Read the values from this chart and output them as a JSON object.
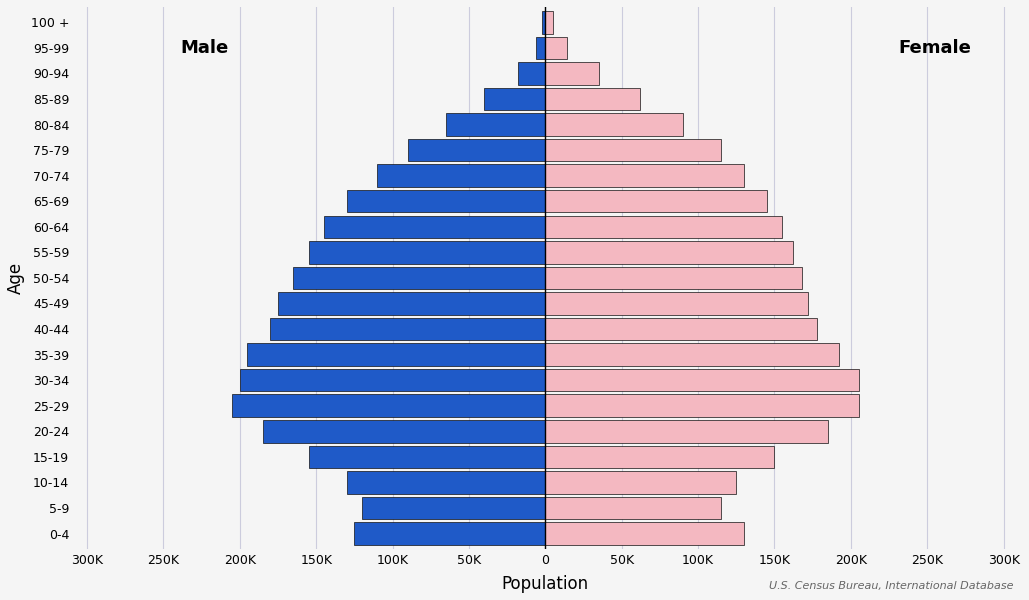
{
  "age_groups": [
    "0-4",
    "5-9",
    "10-14",
    "15-19",
    "20-24",
    "25-29",
    "30-34",
    "35-39",
    "40-44",
    "45-49",
    "50-54",
    "55-59",
    "60-64",
    "65-69",
    "70-74",
    "75-79",
    "80-84",
    "85-89",
    "90-94",
    "95-99",
    "100 +"
  ],
  "male": [
    125000,
    120000,
    130000,
    155000,
    185000,
    205000,
    200000,
    195000,
    180000,
    175000,
    165000,
    155000,
    145000,
    130000,
    110000,
    90000,
    65000,
    40000,
    18000,
    6000,
    2000
  ],
  "female": [
    130000,
    115000,
    125000,
    150000,
    185000,
    205000,
    205000,
    192000,
    178000,
    172000,
    168000,
    162000,
    155000,
    145000,
    130000,
    115000,
    90000,
    62000,
    35000,
    14000,
    5000
  ],
  "male_color": "#1f5ac8",
  "female_color": "#f4b8c1",
  "male_edge_color": "#111111",
  "female_edge_color": "#111111",
  "male_label": "Male",
  "female_label": "Female",
  "xlabel": "Population",
  "ylabel": "Age",
  "xlim": 310000,
  "source_text": "U.S. Census Bureau, International Database",
  "background_color": "#f5f5f5",
  "grid_color": "#ccccdd",
  "tick_vals": [
    -300000,
    -250000,
    -200000,
    -150000,
    -100000,
    -50000,
    0,
    50000,
    100000,
    150000,
    200000,
    250000,
    300000
  ]
}
